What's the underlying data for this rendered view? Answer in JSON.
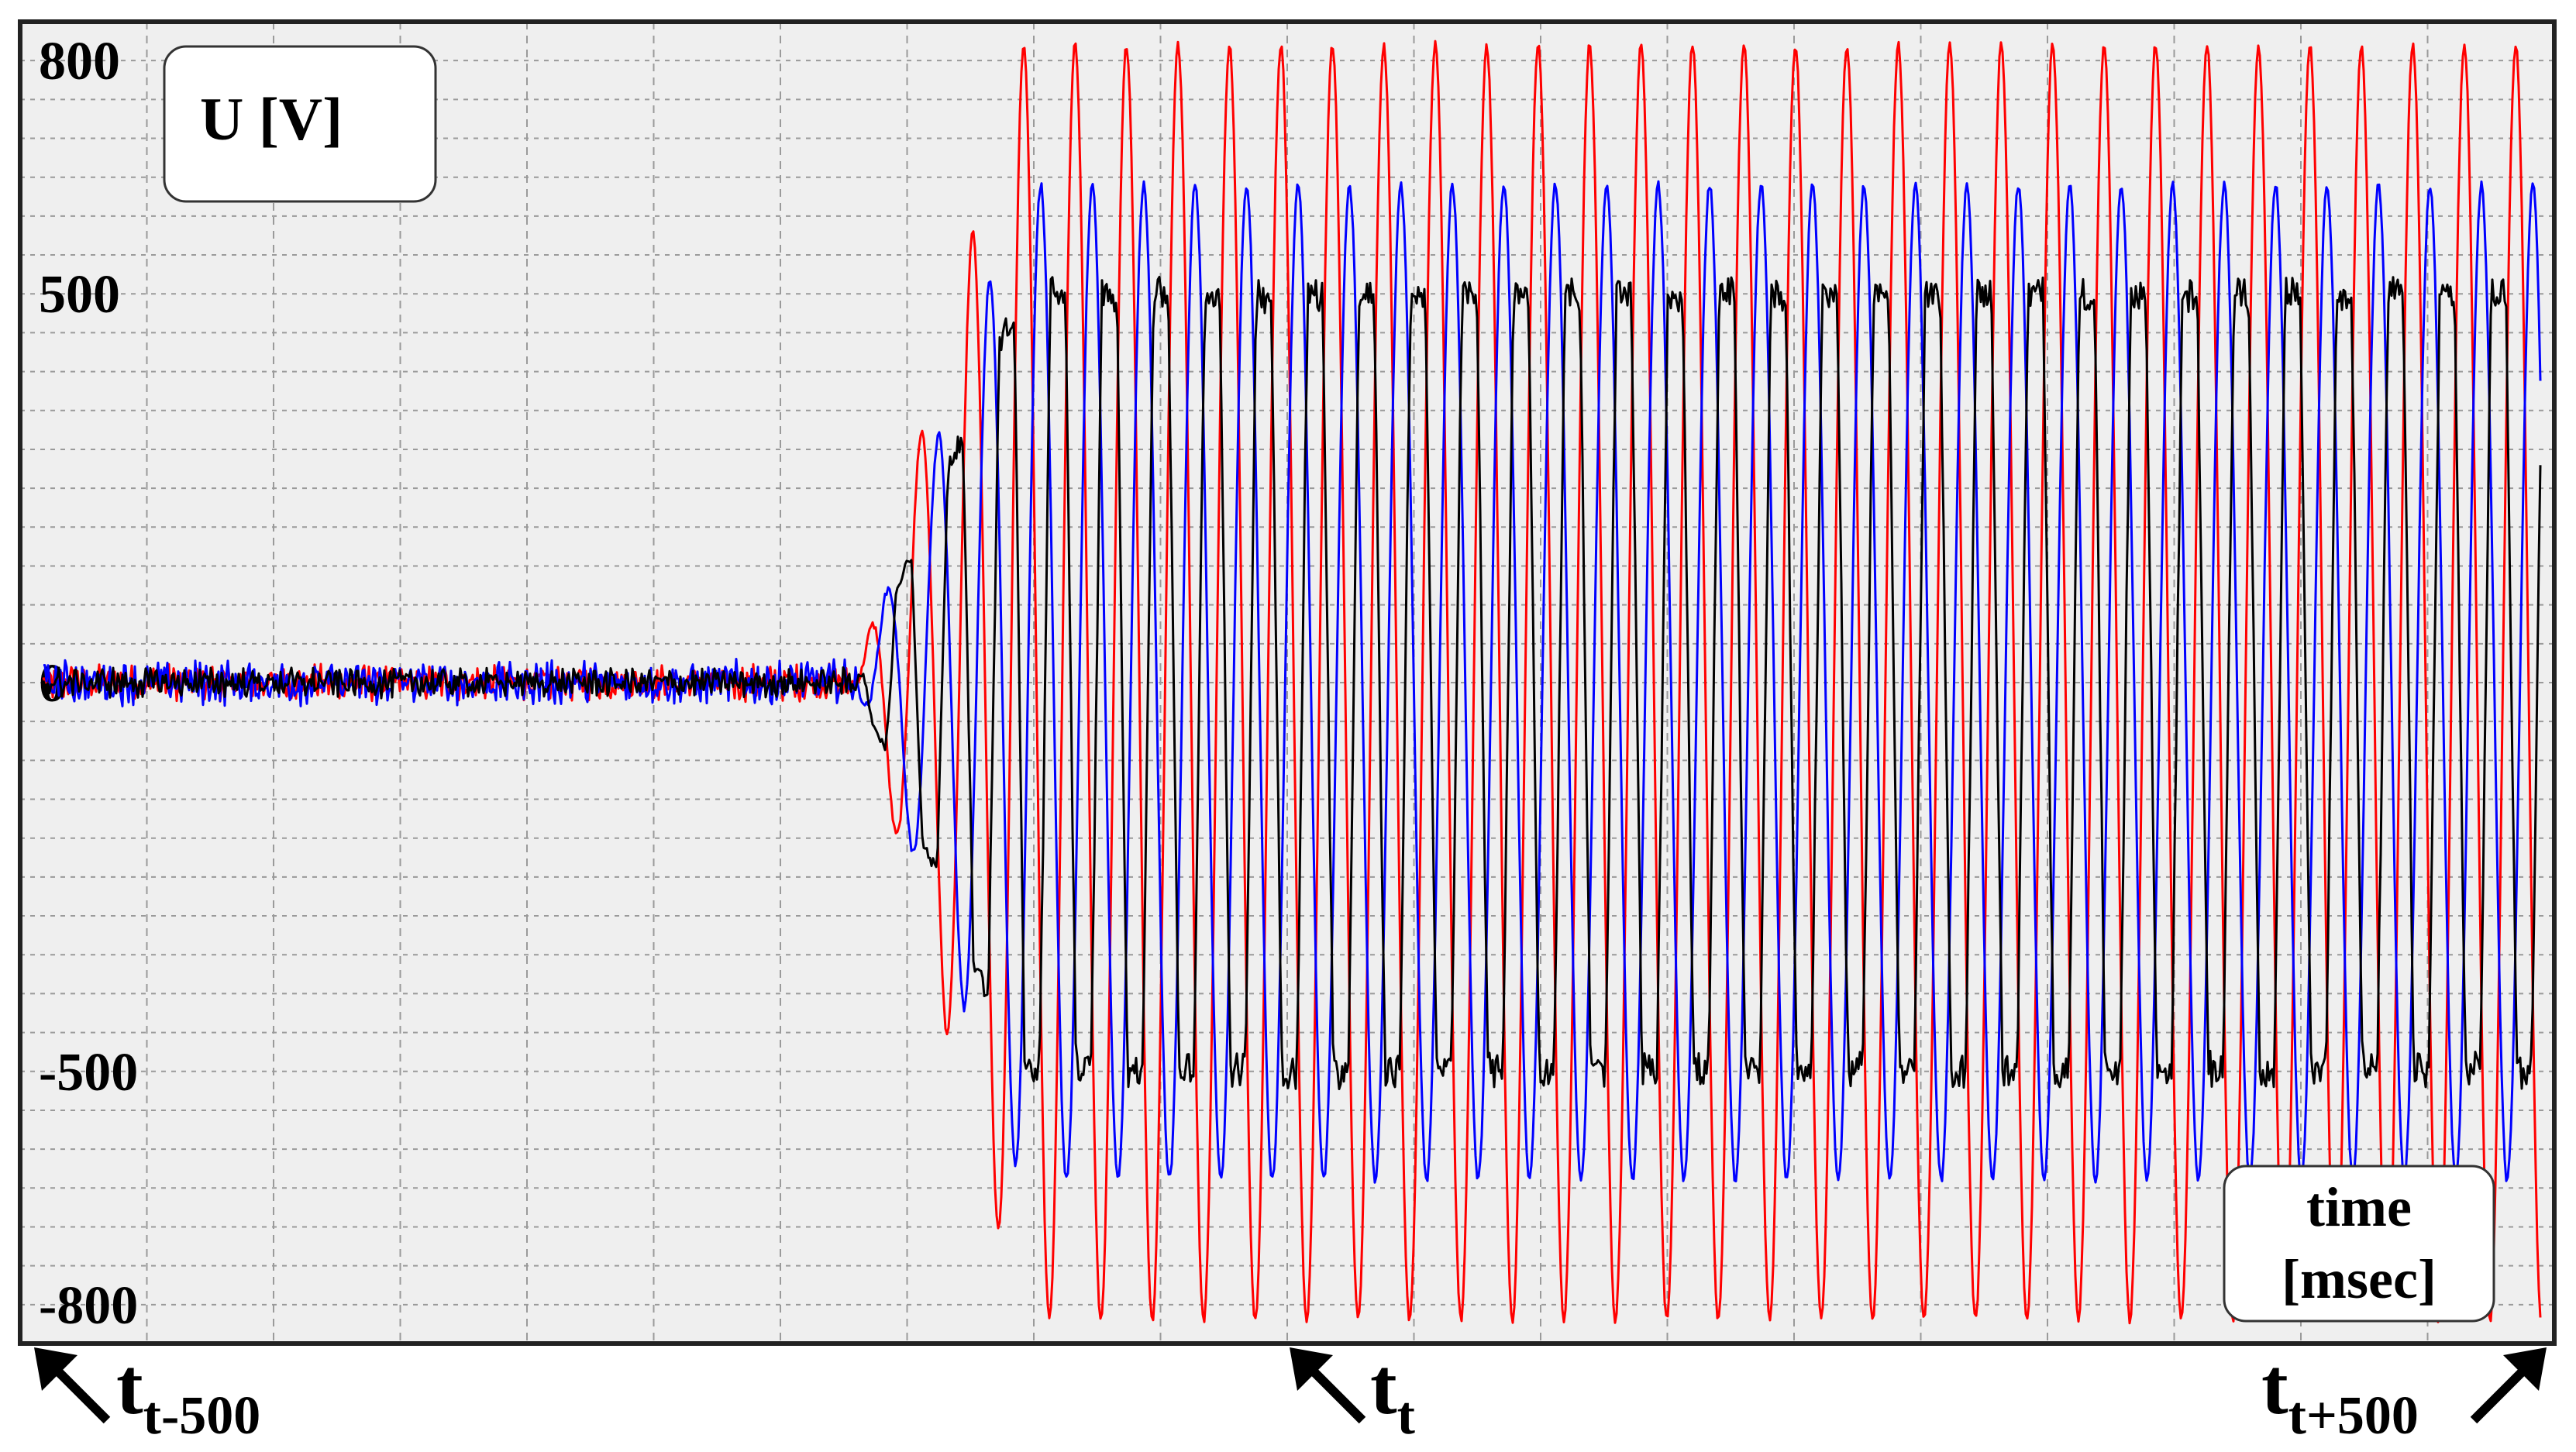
{
  "chart_data": {
    "type": "line",
    "ylabel": "U [V]",
    "xlabel": "time\n[msec]",
    "ylim": [
      -850,
      850
    ],
    "yticks": [
      800,
      500,
      0,
      -500,
      -800
    ],
    "grid": true,
    "x_markers": [
      {
        "main": "t",
        "sub": "t-500"
      },
      {
        "main": "t",
        "sub": "t"
      },
      {
        "main": "t",
        "sub": "t+500"
      }
    ],
    "series": [
      {
        "color": "#ff0000",
        "phase_deg": 0,
        "amplitude_start": 0,
        "amplitude_end": 820,
        "noise_before": 18
      },
      {
        "color": "#0000ff",
        "phase_deg": -120,
        "amplitude_start": 0,
        "amplitude_end": 640,
        "noise_before": 22
      },
      {
        "color": "#000000",
        "phase_deg": 120,
        "amplitude_start": 0,
        "amplitude_end": 520,
        "noise_before": 15,
        "shape": "trapezoidal"
      }
    ],
    "cycles_after_fault": 33,
    "fault_fraction": 0.33
  },
  "labels": {
    "ylabel_box": "U [V]",
    "xlabel_line1": "time",
    "xlabel_line2": "[msec]",
    "t_start_main": "t",
    "t_start_sub": "t-500",
    "t_mid_main": "t",
    "t_mid_sub": "t",
    "t_end_main": "t",
    "t_end_sub": "t+500"
  },
  "colors": {
    "plot_bg": "#efefef",
    "grid": "#9a9a9a",
    "frame": "#000000"
  }
}
